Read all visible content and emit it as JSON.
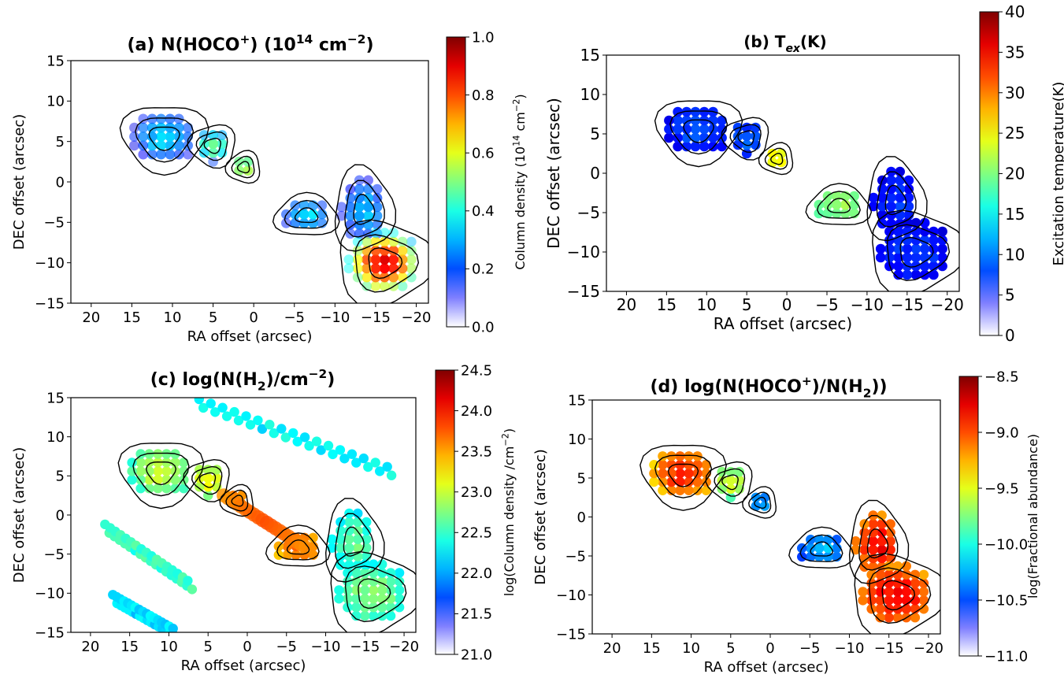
{
  "chart_data": [
    {
      "type": "heatmap",
      "panel": "a",
      "title": "(a) N(HOCO",
      "title_sup": "+",
      "title_rest": ") (10",
      "title_exp": "14",
      "title_unit": " cm",
      "title_unit_exp": "−2",
      "title_end": ")",
      "xlabel": "RA offset (arcsec)",
      "ylabel": "DEC offset (arcsec)",
      "xlim": [
        22.5,
        -21.5
      ],
      "ylim": [
        -15,
        15
      ],
      "xticks": [
        "20",
        "15",
        "10",
        "5",
        "0",
        "−5",
        "−10",
        "−15",
        "−20"
      ],
      "xtick_values": [
        20,
        15,
        10,
        5,
        0,
        -5,
        -10,
        -15,
        -20
      ],
      "yticks": [
        "15",
        "10",
        "5",
        "0",
        "−5",
        "−10",
        "−15"
      ],
      "ytick_values": [
        15,
        10,
        5,
        0,
        -5,
        -10,
        -15
      ],
      "colorbar": {
        "label": "Column density (10",
        "label_exp": "14",
        "label_unit": " cm",
        "label_unit_exp": "−2",
        "label_end": ")",
        "range": [
          0.0,
          1.0
        ],
        "ticks": [
          "0.0",
          "0.2",
          "0.4",
          "0.6",
          "0.8",
          "1.0"
        ],
        "tick_values": [
          0.0,
          0.2,
          0.4,
          0.6,
          0.8,
          1.0
        ]
      },
      "colormap": "jet"
    },
    {
      "type": "heatmap",
      "panel": "b",
      "title": "(b) T",
      "title_sub": "ex",
      "title_rest": "(K)",
      "xlabel": "RA offset (arcsec)",
      "ylabel": "DEC offset (arcsec)",
      "xlim": [
        22.5,
        -21.5
      ],
      "ylim": [
        -15,
        15
      ],
      "xticks": [
        "20",
        "15",
        "10",
        "5",
        "0",
        "−5",
        "−10",
        "−15",
        "−20"
      ],
      "xtick_values": [
        20,
        15,
        10,
        5,
        0,
        -5,
        -10,
        -15,
        -20
      ],
      "yticks": [
        "15",
        "10",
        "5",
        "0",
        "−5",
        "−10",
        "−15"
      ],
      "ytick_values": [
        15,
        10,
        5,
        0,
        -5,
        -10,
        -15
      ],
      "colorbar": {
        "label": "Excitation temperature(K)",
        "range": [
          0,
          40
        ],
        "ticks": [
          "0",
          "5",
          "10",
          "15",
          "20",
          "25",
          "30",
          "35",
          "40"
        ],
        "tick_values": [
          0,
          5,
          10,
          15,
          20,
          25,
          30,
          35,
          40
        ]
      },
      "colormap": "jet"
    },
    {
      "type": "heatmap",
      "panel": "c",
      "title": "(c) log(N(H",
      "title_sub": "2",
      "title_rest": ")/cm",
      "title_exp": "−2",
      "title_end": ")",
      "xlabel": "RA offset (arcsec)",
      "ylabel": "DEC offset (arcsec)",
      "xlim": [
        22.5,
        -21.5
      ],
      "ylim": [
        -15,
        15
      ],
      "xticks": [
        "20",
        "15",
        "10",
        "5",
        "0",
        "−5",
        "−10",
        "−15",
        "−20"
      ],
      "xtick_values": [
        20,
        15,
        10,
        5,
        0,
        -5,
        -10,
        -15,
        -20
      ],
      "yticks": [
        "15",
        "10",
        "5",
        "0",
        "−5",
        "−10",
        "−15"
      ],
      "ytick_values": [
        15,
        10,
        5,
        0,
        -5,
        -10,
        -15
      ],
      "colorbar": {
        "label": "log(Column density /cm",
        "label_exp": "−2",
        "label_end": ")",
        "range": [
          21.0,
          24.5
        ],
        "ticks": [
          "21.0",
          "21.5",
          "22.0",
          "22.5",
          "23.0",
          "23.5",
          "24.0",
          "24.5"
        ],
        "tick_values": [
          21.0,
          21.5,
          22.0,
          22.5,
          23.0,
          23.5,
          24.0,
          24.5
        ]
      },
      "colormap": "jet"
    },
    {
      "type": "heatmap",
      "panel": "d",
      "title": "(d) log(N(HOCO",
      "title_sup": "+",
      "title_rest": ")/N(H",
      "title_sub": "2",
      "title_end": "))",
      "xlabel": "RA offset (arcsec)",
      "ylabel": "DEC offset (arcsec)",
      "xlim": [
        22.5,
        -21.5
      ],
      "ylim": [
        -15,
        15
      ],
      "xticks": [
        "20",
        "15",
        "10",
        "5",
        "0",
        "−5",
        "−10",
        "−15",
        "−20"
      ],
      "xtick_values": [
        20,
        15,
        10,
        5,
        0,
        -5,
        -10,
        -15,
        -20
      ],
      "yticks": [
        "15",
        "10",
        "5",
        "0",
        "−5",
        "−10",
        "−15"
      ],
      "ytick_values": [
        15,
        10,
        5,
        0,
        -5,
        -10,
        -15
      ],
      "colorbar": {
        "label": "log(Fractional abundance)",
        "range": [
          -11.0,
          -8.5
        ],
        "ticks": [
          "−11.0",
          "−10.5",
          "−10.0",
          "−9.5",
          "−9.0",
          "−8.5"
        ],
        "tick_values": [
          -11.0,
          -10.5,
          -10.0,
          -9.5,
          -9.0,
          -8.5
        ]
      },
      "colormap": "jet"
    }
  ],
  "clumps": [
    {
      "x": 11,
      "y": 5.5,
      "rx": 4.0,
      "ry": 3.2
    },
    {
      "x": 5,
      "y": 4.5,
      "rx": 2.2,
      "ry": 2.0
    },
    {
      "x": 1.2,
      "y": 1.8,
      "rx": 1.6,
      "ry": 1.5
    },
    {
      "x": -6.5,
      "y": -4.2,
      "rx": 3.0,
      "ry": 2.0
    },
    {
      "x": -13.5,
      "y": -3.5,
      "rx": 2.8,
      "ry": 4.0
    },
    {
      "x": -16,
      "y": -10.0,
      "rx": 4.5,
      "ry": 4.0
    }
  ],
  "panel_values": {
    "a": [
      0.27,
      0.4,
      0.5,
      0.28,
      0.25,
      0.72
    ],
    "b": [
      7,
      8,
      25,
      20,
      6,
      6
    ],
    "c": [
      22.9,
      23.1,
      23.7,
      23.7,
      22.6,
      22.7
    ],
    "d": [
      -9.0,
      -9.6,
      -10.3,
      -10.3,
      -8.9,
      -8.9
    ]
  }
}
